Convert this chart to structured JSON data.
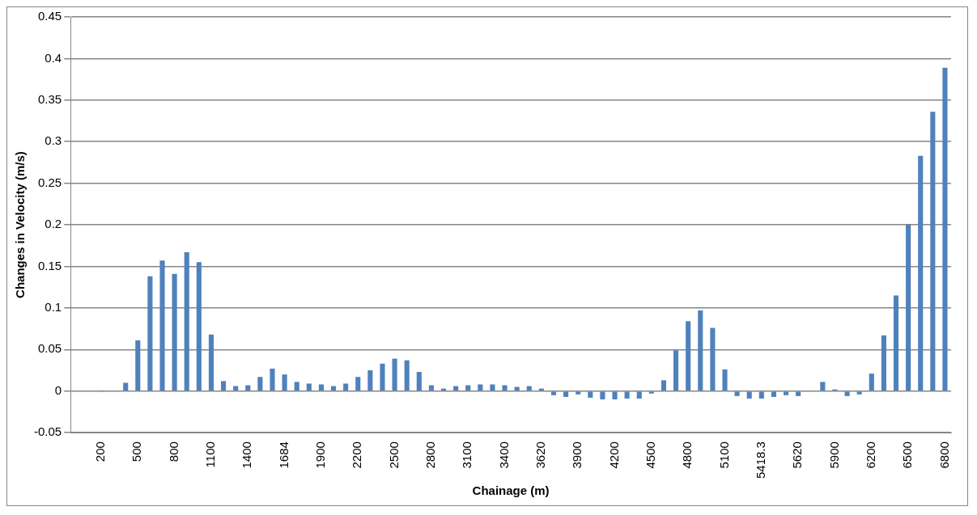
{
  "chart_data": {
    "type": "bar",
    "xlabel": "Chainage (m)",
    "ylabel": "Changes in Velocity (m/s)",
    "categories": [
      null,
      null,
      "200",
      null,
      null,
      "500",
      null,
      null,
      "800",
      null,
      null,
      "1100",
      null,
      null,
      "1400",
      null,
      null,
      "1684",
      null,
      null,
      "1900",
      null,
      null,
      "2200",
      null,
      null,
      "2500",
      null,
      null,
      "2800",
      null,
      null,
      "3100",
      null,
      null,
      "3400",
      null,
      null,
      "3620",
      null,
      null,
      "3900",
      null,
      null,
      "4200",
      null,
      null,
      "4500",
      null,
      null,
      "4800",
      null,
      null,
      "5100",
      null,
      null,
      "5418.3",
      null,
      null,
      "5620",
      null,
      null,
      "5900",
      null,
      null,
      "6200",
      null,
      null,
      "6500",
      null,
      null,
      "6800"
    ],
    "values": [
      0,
      0,
      -0.001,
      0,
      0.01,
      0.061,
      0.138,
      0.157,
      0.141,
      0.167,
      0.155,
      0.068,
      0.012,
      0.006,
      0.007,
      0.017,
      0.027,
      0.02,
      0.011,
      0.009,
      0.008,
      0.006,
      0.009,
      0.017,
      0.025,
      0.033,
      0.039,
      0.037,
      0.023,
      0.007,
      0.003,
      0.006,
      0.007,
      0.008,
      0.008,
      0.007,
      0.005,
      0.006,
      0.003,
      -0.005,
      -0.007,
      -0.004,
      -0.008,
      -0.01,
      -0.01,
      -0.009,
      -0.009,
      -0.003,
      0.013,
      0.049,
      0.084,
      0.097,
      0.076,
      0.026,
      -0.006,
      -0.009,
      -0.009,
      -0.007,
      -0.005,
      -0.006,
      0,
      0.011,
      0.002,
      -0.006,
      -0.004,
      0.021,
      0.067,
      0.115,
      0.2,
      0.283,
      0.336,
      0.389
    ],
    "color": "#4f81bd",
    "ylim": [
      -0.05,
      0.45
    ],
    "yticks": [
      -0.05,
      0,
      0.05,
      0.1,
      0.15,
      0.2,
      0.25,
      0.3,
      0.35,
      0.4,
      0.45
    ],
    "grid": "y",
    "legend": false
  }
}
